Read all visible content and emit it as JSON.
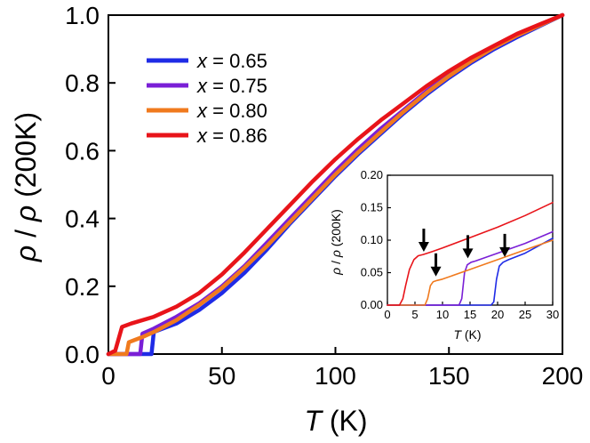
{
  "chart_data": [
    {
      "type": "line",
      "xlabel_var": "T",
      "xlabel_unit": "(K)",
      "ylabel_var1": "ρ",
      "ylabel_sep": "/",
      "ylabel_var2": "ρ",
      "ylabel_unit": "(200K)",
      "xlim": [
        0,
        200
      ],
      "ylim": [
        0,
        1.0
      ],
      "xticks": [
        "0",
        "50",
        "100",
        "150",
        "200"
      ],
      "yticks": [
        "0.0",
        "0.2",
        "0.4",
        "0.6",
        "0.8",
        "1.0"
      ],
      "legend_position": "top-left",
      "series": [
        {
          "name": "x = 0.65",
          "legend_var": "x",
          "legend_value": "= 0.65",
          "color": "#1f2be6",
          "x": [
            0,
            19,
            20,
            30,
            40,
            50,
            60,
            70,
            80,
            90,
            100,
            110,
            120,
            130,
            140,
            150,
            160,
            170,
            180,
            190,
            200
          ],
          "y": [
            0,
            0,
            0.065,
            0.09,
            0.13,
            0.18,
            0.24,
            0.31,
            0.385,
            0.455,
            0.525,
            0.59,
            0.65,
            0.71,
            0.765,
            0.815,
            0.86,
            0.9,
            0.935,
            0.968,
            1.0
          ]
        },
        {
          "name": "x = 0.75",
          "legend_var": "x",
          "legend_value": "= 0.75",
          "color": "#7a1fd6",
          "x": [
            0,
            14,
            15,
            20,
            30,
            40,
            50,
            60,
            70,
            80,
            90,
            100,
            110,
            120,
            130,
            140,
            150,
            160,
            170,
            180,
            190,
            200
          ],
          "y": [
            0,
            0,
            0.06,
            0.075,
            0.11,
            0.15,
            0.2,
            0.26,
            0.33,
            0.4,
            0.47,
            0.54,
            0.605,
            0.665,
            0.72,
            0.775,
            0.825,
            0.865,
            0.905,
            0.94,
            0.97,
            1.0
          ]
        },
        {
          "name": "x = 0.80",
          "legend_var": "x",
          "legend_value": "= 0.80",
          "color": "#f07a1e",
          "x": [
            0,
            8,
            9,
            15,
            20,
            30,
            40,
            50,
            60,
            70,
            80,
            90,
            100,
            110,
            120,
            130,
            140,
            150,
            160,
            170,
            180,
            190,
            200
          ],
          "y": [
            0,
            0,
            0.035,
            0.05,
            0.065,
            0.1,
            0.145,
            0.195,
            0.255,
            0.32,
            0.39,
            0.46,
            0.53,
            0.595,
            0.655,
            0.715,
            0.77,
            0.82,
            0.865,
            0.905,
            0.94,
            0.97,
            1.0
          ]
        },
        {
          "name": "x = 0.86",
          "legend_var": "x",
          "legend_value": "= 0.86",
          "color": "#e8141a",
          "x": [
            0,
            3,
            6,
            10,
            20,
            30,
            40,
            50,
            60,
            70,
            80,
            90,
            100,
            110,
            120,
            130,
            140,
            150,
            160,
            170,
            180,
            190,
            200
          ],
          "y": [
            0,
            0.01,
            0.08,
            0.09,
            0.11,
            0.14,
            0.18,
            0.235,
            0.3,
            0.37,
            0.44,
            0.51,
            0.575,
            0.635,
            0.69,
            0.74,
            0.79,
            0.835,
            0.875,
            0.91,
            0.945,
            0.973,
            1.0
          ]
        }
      ]
    },
    {
      "type": "line",
      "inset": true,
      "xlabel_var": "T",
      "xlabel_unit": "(K)",
      "ylabel_var1": "ρ",
      "ylabel_sep": "/",
      "ylabel_var2": "ρ",
      "ylabel_unit": "(200K)",
      "xlim": [
        0,
        30
      ],
      "ylim": [
        0,
        0.2
      ],
      "xticks": [
        "0",
        "5",
        "10",
        "15",
        "20",
        "25",
        "30"
      ],
      "yticks": [
        "0.00",
        "0.05",
        "0.10",
        "0.15",
        "0.20"
      ],
      "arrows_at": [
        {
          "x": 6.6,
          "y": 0.078
        },
        {
          "x": 8.8,
          "y": 0.04
        },
        {
          "x": 14.6,
          "y": 0.068
        },
        {
          "x": 21.3,
          "y": 0.07
        }
      ],
      "series": [
        {
          "name": "x = 0.65",
          "color": "#1f2be6",
          "x": [
            0,
            18.8,
            19.3,
            19.8,
            20.3,
            21,
            22,
            25,
            30
          ],
          "y": [
            0,
            0,
            0.005,
            0.04,
            0.06,
            0.066,
            0.07,
            0.08,
            0.103
          ]
        },
        {
          "name": "x = 0.75",
          "color": "#7a1fd6",
          "x": [
            0,
            13.0,
            13.5,
            14.0,
            14.5,
            15.2,
            16,
            20,
            25,
            30
          ],
          "y": [
            0,
            0,
            0.01,
            0.05,
            0.062,
            0.066,
            0.068,
            0.08,
            0.095,
            0.113
          ]
        },
        {
          "name": "x = 0.80",
          "color": "#f07a1e",
          "x": [
            0,
            6.8,
            7.3,
            7.8,
            8.3,
            9,
            10,
            15,
            20,
            25,
            30
          ],
          "y": [
            0,
            0,
            0.01,
            0.03,
            0.036,
            0.038,
            0.04,
            0.055,
            0.07,
            0.085,
            0.1
          ]
        },
        {
          "name": "x = 0.86",
          "color": "#e8141a",
          "x": [
            0,
            2.2,
            2.8,
            3.3,
            4.0,
            4.8,
            5.6,
            6.5,
            8,
            10,
            15,
            20,
            25,
            30
          ],
          "y": [
            0,
            0,
            0.01,
            0.03,
            0.055,
            0.07,
            0.076,
            0.078,
            0.082,
            0.088,
            0.104,
            0.12,
            0.138,
            0.158
          ]
        }
      ]
    }
  ]
}
